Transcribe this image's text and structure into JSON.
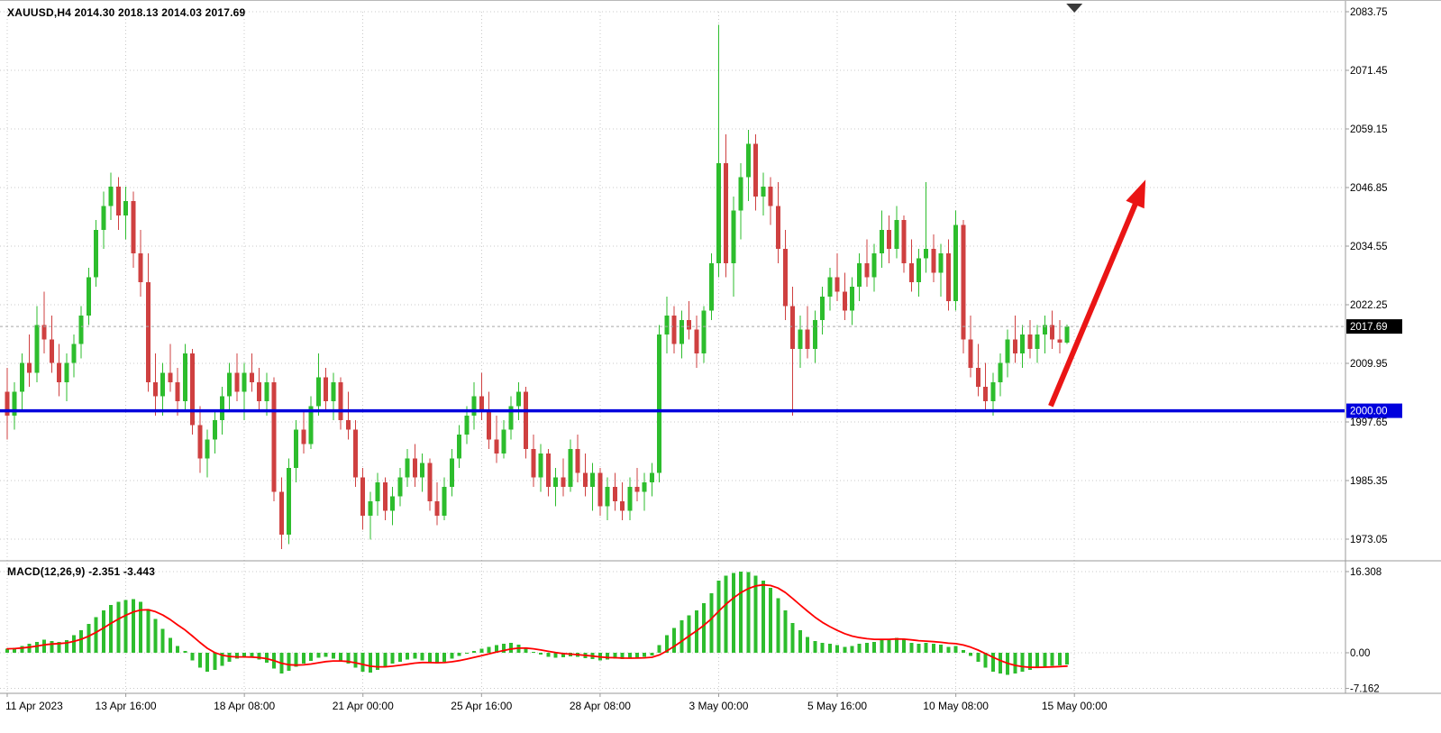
{
  "window": {
    "symbol_info": "XAUUSD,H4 2014.30 2018.13 2014.03 2017.69",
    "macd_label": "MACD(12,26,9) -2.351 -3.443"
  },
  "colors": {
    "bull": "#2dbd2d",
    "bear": "#cf4040",
    "grid": "#c8c8c8",
    "separator": "#9a9a9a",
    "axis_text": "#000000",
    "support_line": "#0000dd",
    "current_price_line": "#a8a8a8",
    "current_price_badge_bg": "#000000",
    "support_badge_bg": "#0000dd",
    "badge_text": "#ffffff",
    "macd_histogram": "#2dbd2d",
    "macd_signal": "#ff0000",
    "arrow": "#ea1515",
    "shift_marker": "#3a3a3a"
  },
  "chart_data": {
    "type": "candlestick",
    "symbol": "XAUUSD",
    "timeframe": "H4",
    "last_bar_ohlc": [
      2014.3,
      2018.13,
      2014.03,
      2017.69
    ],
    "current_price": 2017.69,
    "current_price_label": "2017.69",
    "support_line_price": 2000.0,
    "support_line_label": "2000.00",
    "price_axis_ticks": [
      "2083.75",
      "2071.45",
      "2059.15",
      "2046.85",
      "2034.55",
      "2022.25",
      "2009.95",
      "1997.65",
      "1985.35",
      "1973.05"
    ],
    "time_axis_ticks": [
      "11 Apr 2023",
      "13 Apr 16:00",
      "18 Apr 08:00",
      "21 Apr 00:00",
      "25 Apr 16:00",
      "28 Apr 08:00",
      "3 May 00:00",
      "5 May 16:00",
      "10 May 08:00",
      "15 May 00:00"
    ],
    "bars_per_gridline": 16,
    "grid": true,
    "candles": [
      [
        2004,
        2009,
        1994,
        1999
      ],
      [
        1999,
        2006,
        1996,
        2004
      ],
      [
        2004,
        2012,
        2000,
        2010
      ],
      [
        2010,
        2016,
        2005,
        2008
      ],
      [
        2008,
        2022,
        2006,
        2018
      ],
      [
        2018,
        2025,
        2012,
        2015
      ],
      [
        2015,
        2020,
        2008,
        2010
      ],
      [
        2010,
        2014,
        2003,
        2006
      ],
      [
        2006,
        2012,
        2002,
        2010
      ],
      [
        2010,
        2016,
        2007,
        2014
      ],
      [
        2014,
        2022,
        2011,
        2020
      ],
      [
        2020,
        2030,
        2018,
        2028
      ],
      [
        2028,
        2040,
        2026,
        2038
      ],
      [
        2038,
        2046,
        2034,
        2043
      ],
      [
        2043,
        2050,
        2040,
        2047
      ],
      [
        2047,
        2049,
        2038,
        2041
      ],
      [
        2041,
        2047,
        2036,
        2044
      ],
      [
        2044,
        2046,
        2030,
        2033
      ],
      [
        2033,
        2038,
        2024,
        2027
      ],
      [
        2027,
        2033,
        2004,
        2006
      ],
      [
        2006,
        2012,
        1999,
        2003
      ],
      [
        2003,
        2010,
        1999,
        2008
      ],
      [
        2008,
        2014,
        2004,
        2006
      ],
      [
        2006,
        2009,
        1999,
        2002
      ],
      [
        2002,
        2014,
        2000,
        2012
      ],
      [
        2012,
        2013,
        1995,
        1997
      ],
      [
        1997,
        2001,
        1987,
        1990
      ],
      [
        1990,
        1996,
        1986,
        1994
      ],
      [
        1994,
        2000,
        1991,
        1998
      ],
      [
        1998,
        2005,
        1995,
        2003
      ],
      [
        2003,
        2010,
        2000,
        2008
      ],
      [
        2008,
        2012,
        2002,
        2004
      ],
      [
        2004,
        2010,
        1998,
        2008
      ],
      [
        2008,
        2012,
        2004,
        2006
      ],
      [
        2006,
        2009,
        2000,
        2002
      ],
      [
        2002,
        2008,
        1999,
        2006
      ],
      [
        2006,
        2007,
        1981,
        1983
      ],
      [
        1983,
        1986,
        1971,
        1974
      ],
      [
        1974,
        1990,
        1972,
        1988
      ],
      [
        1988,
        1998,
        1985,
        1996
      ],
      [
        1996,
        2000,
        1991,
        1993
      ],
      [
        1993,
        2003,
        1992,
        2001
      ],
      [
        2001,
        2012,
        1999,
        2007
      ],
      [
        2007,
        2009,
        2000,
        2002
      ],
      [
        2002,
        2008,
        1998,
        2006
      ],
      [
        2006,
        2007,
        1996,
        1998
      ],
      [
        1998,
        2004,
        1994,
        1996
      ],
      [
        1996,
        1998,
        1984,
        1986
      ],
      [
        1986,
        1988,
        1975,
        1978
      ],
      [
        1978,
        1983,
        1973,
        1981
      ],
      [
        1981,
        1987,
        1978,
        1985
      ],
      [
        1985,
        1986,
        1977,
        1979
      ],
      [
        1979,
        1984,
        1976,
        1982
      ],
      [
        1982,
        1988,
        1980,
        1986
      ],
      [
        1986,
        1992,
        1984,
        1990
      ],
      [
        1990,
        1993,
        1984,
        1986
      ],
      [
        1986,
        1991,
        1983,
        1989
      ],
      [
        1989,
        1990,
        1979,
        1981
      ],
      [
        1981,
        1985,
        1976,
        1978
      ],
      [
        1978,
        1986,
        1977,
        1984
      ],
      [
        1984,
        1992,
        1982,
        1990
      ],
      [
        1990,
        1997,
        1988,
        1995
      ],
      [
        1995,
        2001,
        1993,
        1999
      ],
      [
        1999,
        2006,
        1996,
        2003
      ],
      [
        2003,
        2008,
        1998,
        2000
      ],
      [
        2000,
        2004,
        1992,
        1994
      ],
      [
        1994,
        1999,
        1989,
        1991
      ],
      [
        1991,
        1998,
        1990,
        1996
      ],
      [
        1996,
        2003,
        1994,
        2001
      ],
      [
        2001,
        2006,
        1998,
        2004
      ],
      [
        2004,
        2005,
        1990,
        1992
      ],
      [
        1992,
        1995,
        1984,
        1986
      ],
      [
        1986,
        1993,
        1983,
        1991
      ],
      [
        1991,
        1992,
        1982,
        1984
      ],
      [
        1984,
        1988,
        1980,
        1986
      ],
      [
        1986,
        1990,
        1982,
        1984
      ],
      [
        1984,
        1994,
        1983,
        1992
      ],
      [
        1992,
        1995,
        1985,
        1987
      ],
      [
        1987,
        1991,
        1982,
        1984
      ],
      [
        1984,
        1989,
        1979,
        1987
      ],
      [
        1987,
        1988,
        1978,
        1980
      ],
      [
        1980,
        1986,
        1977,
        1984
      ],
      [
        1984,
        1987,
        1979,
        1981
      ],
      [
        1981,
        1985,
        1977,
        1979
      ],
      [
        1979,
        1986,
        1977,
        1984
      ],
      [
        1984,
        1988,
        1981,
        1983
      ],
      [
        1983,
        1987,
        1979,
        1985
      ],
      [
        1985,
        1989,
        1982,
        1987
      ],
      [
        1987,
        2018,
        1985,
        2016
      ],
      [
        2016,
        2024,
        2012,
        2020
      ],
      [
        2020,
        2022,
        2012,
        2014
      ],
      [
        2014,
        2021,
        2011,
        2019
      ],
      [
        2019,
        2023,
        2015,
        2017
      ],
      [
        2017,
        2020,
        2009,
        2012
      ],
      [
        2012,
        2022,
        2010,
        2021
      ],
      [
        2021,
        2033,
        2019,
        2031
      ],
      [
        2031,
        2081,
        2028,
        2052
      ],
      [
        2052,
        2058,
        2028,
        2031
      ],
      [
        2031,
        2045,
        2024,
        2042
      ],
      [
        2042,
        2052,
        2036,
        2049
      ],
      [
        2049,
        2059,
        2044,
        2056
      ],
      [
        2056,
        2058,
        2042,
        2045
      ],
      [
        2045,
        2050,
        2041,
        2047
      ],
      [
        2047,
        2049,
        2039,
        2043
      ],
      [
        2043,
        2048,
        2031,
        2034
      ],
      [
        2034,
        2038,
        2019,
        2022
      ],
      [
        2022,
        2026,
        1999,
        2013
      ],
      [
        2013,
        2020,
        2009,
        2017
      ],
      [
        2017,
        2022,
        2011,
        2013
      ],
      [
        2013,
        2021,
        2010,
        2019
      ],
      [
        2019,
        2026,
        2016,
        2024
      ],
      [
        2024,
        2030,
        2021,
        2028
      ],
      [
        2028,
        2033,
        2023,
        2025
      ],
      [
        2025,
        2029,
        2019,
        2021
      ],
      [
        2021,
        2028,
        2018,
        2026
      ],
      [
        2026,
        2033,
        2023,
        2031
      ],
      [
        2031,
        2036,
        2026,
        2028
      ],
      [
        2028,
        2035,
        2025,
        2033
      ],
      [
        2033,
        2042,
        2030,
        2038
      ],
      [
        2038,
        2041,
        2031,
        2034
      ],
      [
        2034,
        2043,
        2032,
        2040
      ],
      [
        2040,
        2041,
        2029,
        2031
      ],
      [
        2031,
        2036,
        2025,
        2027
      ],
      [
        2027,
        2034,
        2024,
        2032
      ],
      [
        2032,
        2048,
        2029,
        2034
      ],
      [
        2034,
        2037,
        2027,
        2029
      ],
      [
        2029,
        2035,
        2024,
        2033
      ],
      [
        2033,
        2036,
        2021,
        2023
      ],
      [
        2023,
        2042,
        2021,
        2039
      ],
      [
        2039,
        2040,
        2012,
        2015
      ],
      [
        2015,
        2020,
        2007,
        2009
      ],
      [
        2009,
        2014,
        2003,
        2005
      ],
      [
        2005,
        2010,
        2000,
        2002
      ],
      [
        2002,
        2008,
        1999,
        2006
      ],
      [
        2006,
        2012,
        2003,
        2010
      ],
      [
        2010,
        2017,
        2007,
        2015
      ],
      [
        2015,
        2020,
        2010,
        2012
      ],
      [
        2012,
        2018,
        2009,
        2016
      ],
      [
        2016,
        2019,
        2011,
        2013
      ],
      [
        2013,
        2018,
        2010,
        2016
      ],
      [
        2016,
        2020,
        2012,
        2018
      ],
      [
        2018,
        2021,
        2013,
        2015
      ],
      [
        2015,
        2019,
        2012,
        2014.3
      ],
      [
        2014.3,
        2018.13,
        2014.03,
        2017.69
      ]
    ],
    "indicator": {
      "name": "MACD(12,26,9)",
      "values_text": "-2.351 -3.443",
      "macd_value": -2.351,
      "signal_value": -3.443,
      "signal_period": 9,
      "axis_levels": [
        "16.308",
        "0.00",
        "-7.162"
      ],
      "histogram": [
        0.8,
        1.0,
        1.4,
        1.8,
        2.2,
        2.6,
        2.4,
        2.2,
        2.5,
        3.5,
        4.5,
        5.8,
        7.2,
        8.5,
        9.6,
        10.2,
        10.6,
        10.8,
        10.2,
        8.8,
        6.8,
        4.8,
        3.0,
        1.4,
        0.4,
        -1.5,
        -3.0,
        -3.8,
        -3.4,
        -2.6,
        -1.8,
        -1.2,
        -0.8,
        -1.0,
        -1.4,
        -2.0,
        -3.2,
        -4.2,
        -3.6,
        -2.8,
        -2.2,
        -1.6,
        -1.0,
        -0.8,
        -1.2,
        -1.6,
        -2.2,
        -3.0,
        -3.8,
        -4.0,
        -3.4,
        -2.8,
        -2.2,
        -1.8,
        -1.4,
        -1.2,
        -1.5,
        -2.0,
        -2.2,
        -1.8,
        -1.2,
        -0.6,
        0.0,
        0.4,
        0.8,
        1.2,
        1.5,
        1.8,
        2.0,
        1.6,
        1.0,
        0.2,
        -0.4,
        -0.8,
        -1.0,
        -0.9,
        -0.7,
        -0.8,
        -1.1,
        -1.3,
        -1.5,
        -1.4,
        -1.2,
        -1.3,
        -1.2,
        -1.0,
        -0.8,
        -0.5,
        1.5,
        3.5,
        5.0,
        6.5,
        7.5,
        8.5,
        10.0,
        12.0,
        14.5,
        15.5,
        16.0,
        16.308,
        16.2,
        15.5,
        14.5,
        13.0,
        11.0,
        8.5,
        6.0,
        4.5,
        3.2,
        2.4,
        2.0,
        1.8,
        1.5,
        1.2,
        1.4,
        1.8,
        2.0,
        2.2,
        2.6,
        2.8,
        3.0,
        2.6,
        2.0,
        1.8,
        2.0,
        1.8,
        1.6,
        1.2,
        1.4,
        0.5,
        -0.6,
        -1.8,
        -3.0,
        -3.8,
        -4.2,
        -4.4,
        -4.2,
        -3.8,
        -3.4,
        -3.0,
        -2.8,
        -2.6,
        -2.5,
        -2.351
      ]
    },
    "trend_arrow": {
      "from": {
        "bar": 140.8,
        "price": 2001
      },
      "to": {
        "bar": 153.6,
        "price": 2048.5
      }
    }
  }
}
